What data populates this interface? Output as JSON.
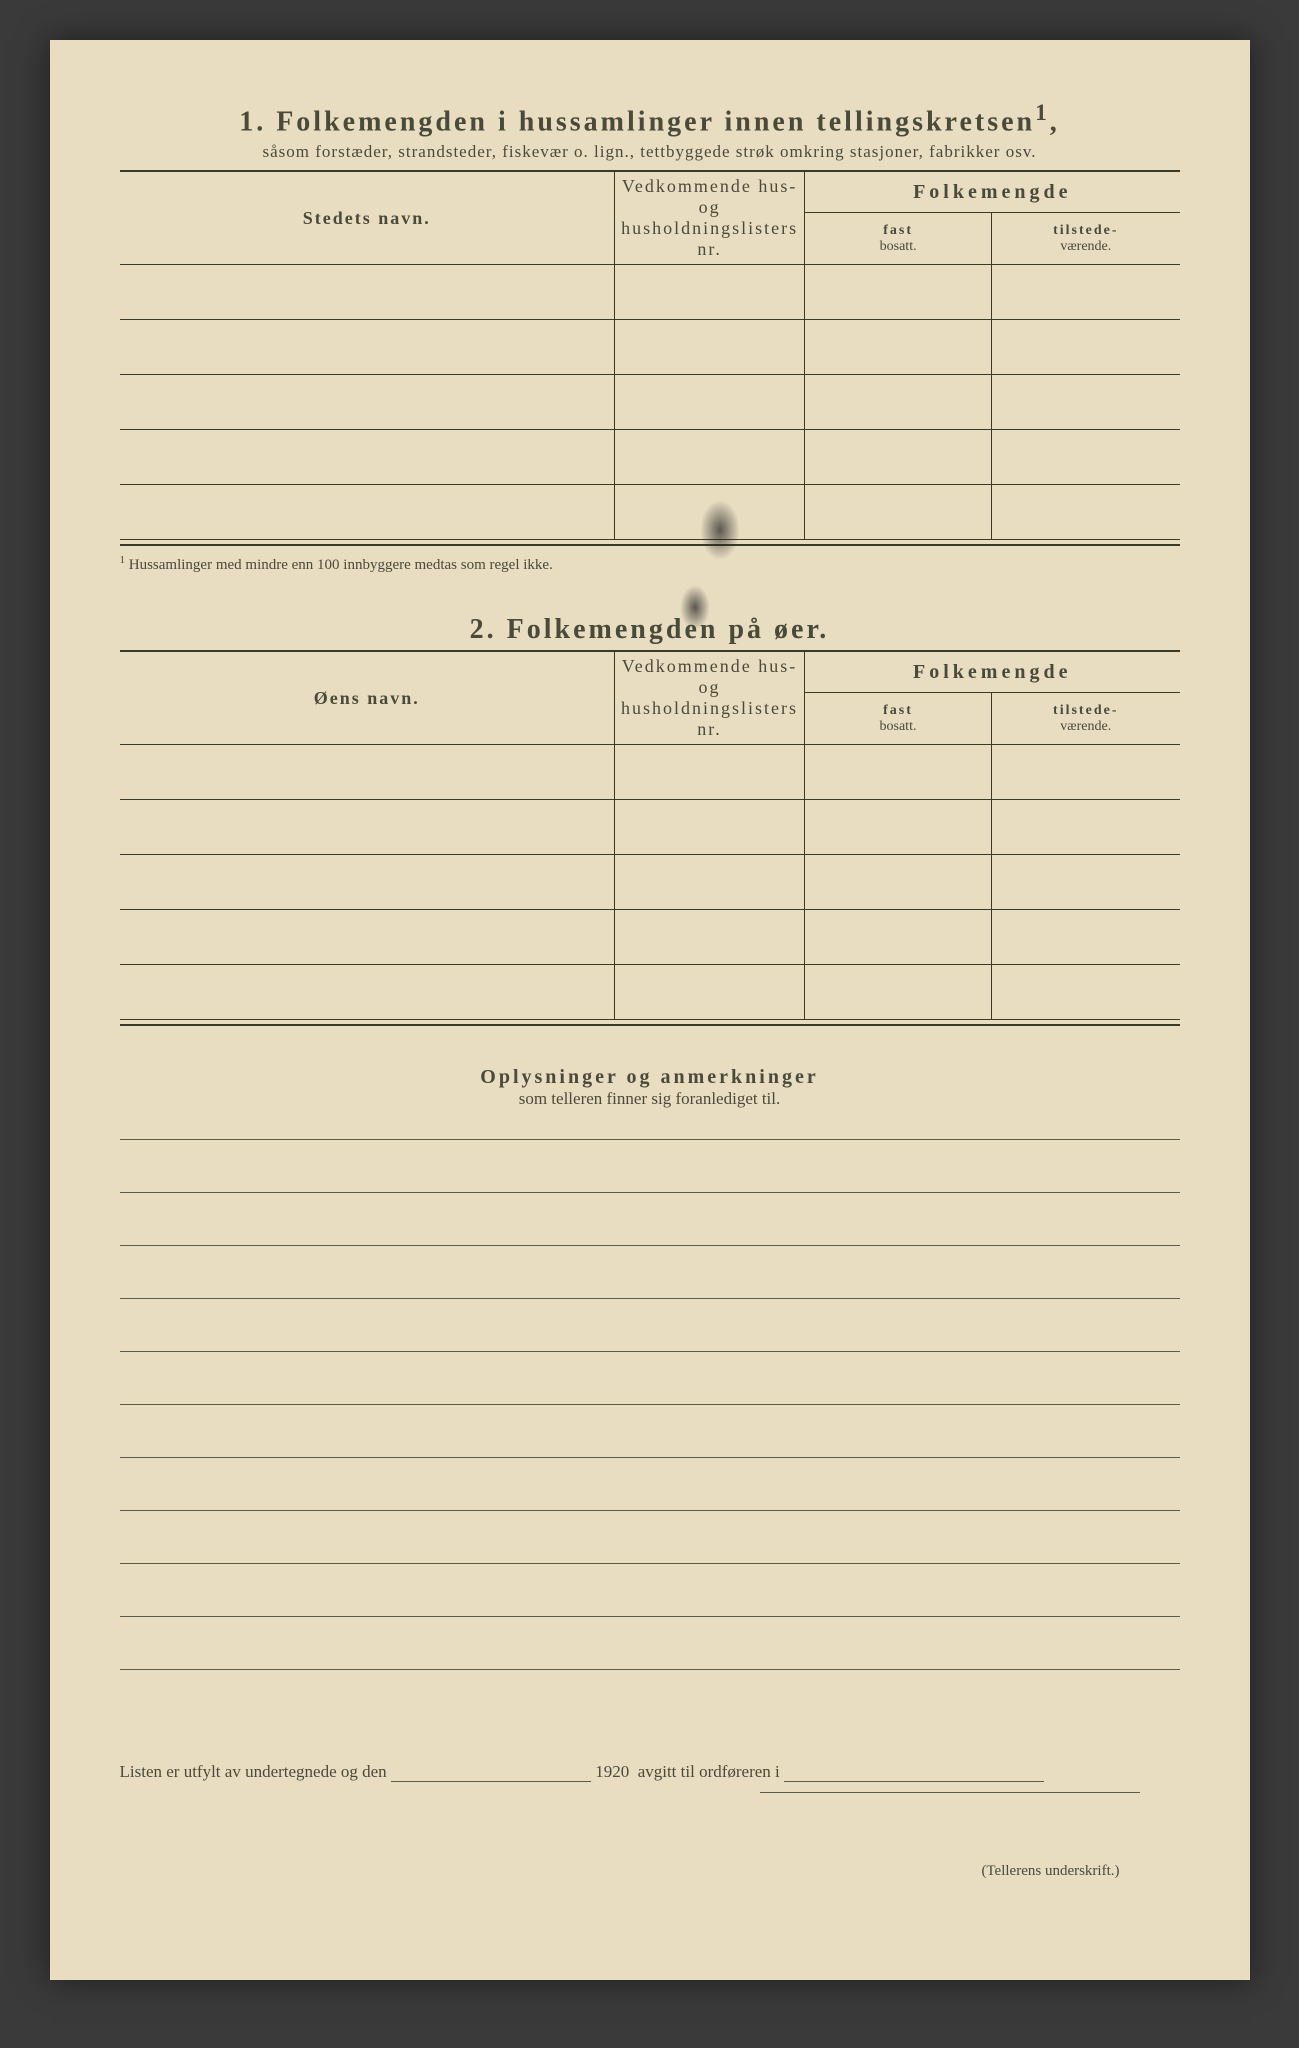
{
  "section1": {
    "number": "1.",
    "title": "Folkemengden i hussamlinger innen tellingskretsen",
    "title_sup": "1",
    "subtitle": "såsom forstæder, strandsteder, fiskevær o. lign., tettbyggede strøk omkring stasjoner, fabrikker osv.",
    "col_name": "Stedets navn.",
    "col_lists_line1": "Vedkommende hus- og",
    "col_lists_line2": "husholdningslisters",
    "col_lists_line3": "nr.",
    "col_pop": "Folkemengde",
    "col_fast": "fast",
    "col_fast2": "bosatt.",
    "col_til": "tilstede-",
    "col_til2": "værende.",
    "footnote_marker": "1",
    "footnote": "Hussamlinger med mindre enn 100 innbyggere medtas som regel ikke.",
    "row_count": 5
  },
  "section2": {
    "number": "2.",
    "title": "Folkemengden på øer.",
    "col_name": "Øens navn.",
    "col_lists_line1": "Vedkommende hus- og",
    "col_lists_line2": "husholdningslisters",
    "col_lists_line3": "nr.",
    "col_pop": "Folkemengde",
    "col_fast": "fast",
    "col_fast2": "bosatt.",
    "col_til": "tilstede-",
    "col_til2": "værende.",
    "row_count": 5
  },
  "notes": {
    "title": "Oplysninger og anmerkninger",
    "subtitle": "som telleren finner sig foranlediget til.",
    "line_count": 11
  },
  "signature": {
    "text_before": "Listen er utfylt av undertegnede og den",
    "year": "1920",
    "text_after": "avgitt til ordføreren i",
    "caption": "(Tellerens underskrift.)"
  },
  "style": {
    "background": "#e8dcc1",
    "text_color": "#4a4a3a",
    "rule_color": "#3a3a2a"
  }
}
